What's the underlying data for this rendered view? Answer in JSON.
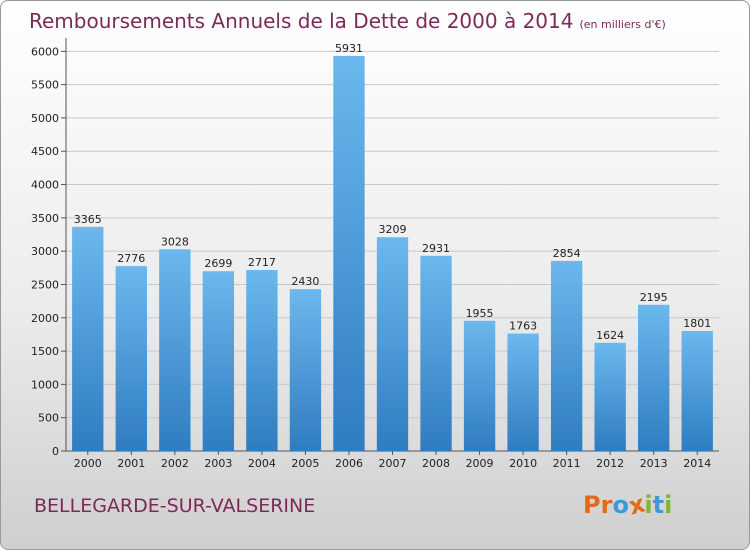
{
  "chart_data": {
    "type": "bar",
    "title": "Remboursements Annuels de la Dette de 2000 à 2014",
    "subtitle": "(en milliers d'€)",
    "categories": [
      "2000",
      "2001",
      "2002",
      "2003",
      "2004",
      "2005",
      "2006",
      "2007",
      "2008",
      "2009",
      "2010",
      "2011",
      "2012",
      "2013",
      "2014"
    ],
    "values": [
      3365,
      2776,
      3028,
      2699,
      2717,
      2430,
      5931,
      3209,
      2931,
      1955,
      1763,
      2854,
      1624,
      2195,
      1801
    ],
    "yticks": [
      0,
      500,
      1000,
      1500,
      2000,
      2500,
      3000,
      3500,
      4000,
      4500,
      5000,
      5500,
      6000
    ],
    "ylim": [
      0,
      6200
    ],
    "grid": true,
    "legend": "none",
    "xlabel": "",
    "ylabel": "",
    "colors": {
      "bar_top": "#6bb8ee",
      "bar_bottom": "#2f7cc0",
      "grid": "#c9c9c9",
      "title": "#7b2a5a"
    }
  },
  "footer": {
    "place": "BELLEGARDE-SUR-VALSERINE",
    "logo": "Proxiti",
    "logo_colors": [
      "#e26a1a",
      "#e26a1a",
      "#3a9ad9",
      "#e26a1a",
      "#7cb82f",
      "#3a9ad9",
      "#7cb82f"
    ]
  }
}
